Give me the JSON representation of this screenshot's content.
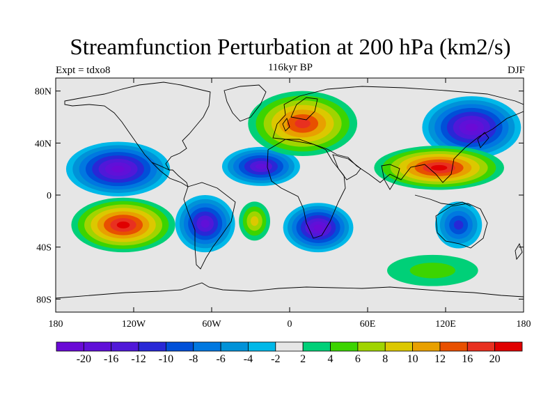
{
  "figure": {
    "title": "Streamfunction Perturbation at 200 hPa (km2/s)",
    "subtitle": "116kyr BP",
    "left_label": "Expt = tdxo8",
    "right_label": "DJF"
  },
  "map": {
    "projection": "cylindrical equidistant",
    "lon_range": [
      -180,
      180
    ],
    "lat_range": [
      -90,
      90
    ],
    "background_color": "#e6e6e6",
    "coastlines": true,
    "x_ticks": [
      {
        "lon": -180,
        "label": "180"
      },
      {
        "lon": -120,
        "label": "120W"
      },
      {
        "lon": -60,
        "label": "60W"
      },
      {
        "lon": 0,
        "label": "0"
      },
      {
        "lon": 60,
        "label": "60E"
      },
      {
        "lon": 120,
        "label": "120E"
      },
      {
        "lon": 180,
        "label": "180"
      }
    ],
    "y_ticks": [
      {
        "lat": 80,
        "label": "80N"
      },
      {
        "lat": 40,
        "label": "40N"
      },
      {
        "lat": 0,
        "label": "0"
      },
      {
        "lat": -40,
        "label": "40S"
      },
      {
        "lat": -80,
        "label": "80S"
      }
    ],
    "features": [
      {
        "name": "eastern-north-pacific-low",
        "sign": "negative",
        "lon": -132,
        "lat": 20,
        "rx": 40,
        "ry": 21,
        "peak": -20
      },
      {
        "name": "tropical-atlantic-low",
        "sign": "negative",
        "lon": -22,
        "lat": 22,
        "rx": 30,
        "ry": 15,
        "peak": -18
      },
      {
        "name": "south-america-low",
        "sign": "negative",
        "lon": -65,
        "lat": -22,
        "rx": 23,
        "ry": 22,
        "peak": -18
      },
      {
        "name": "southern-africa-low",
        "sign": "negative",
        "lon": 22,
        "lat": -25,
        "rx": 27,
        "ry": 19,
        "peak": -20
      },
      {
        "name": "northeast-asia-low",
        "sign": "negative",
        "lon": 140,
        "lat": 52,
        "rx": 38,
        "ry": 24,
        "peak": -20
      },
      {
        "name": "australia-low",
        "sign": "negative",
        "lon": 130,
        "lat": -23,
        "rx": 18,
        "ry": 18,
        "peak": -10
      },
      {
        "name": "south-pacific-high",
        "sign": "positive",
        "lon": -128,
        "lat": -23,
        "rx": 40,
        "ry": 21,
        "peak": 20
      },
      {
        "name": "europe-high",
        "sign": "positive",
        "lon": 10,
        "lat": 55,
        "rx": 42,
        "ry": 25,
        "peak": 16
      },
      {
        "name": "south-asia-high",
        "sign": "positive",
        "lon": 115,
        "lat": 21,
        "rx": 50,
        "ry": 17,
        "peak": 20
      },
      {
        "name": "south-atlantic-high",
        "sign": "positive",
        "lon": -27,
        "lat": -20,
        "rx": 12,
        "ry": 15,
        "peak": 8
      },
      {
        "name": "southern-ocean-high",
        "sign": "positive",
        "lon": 110,
        "lat": -58,
        "rx": 35,
        "ry": 12,
        "peak": 4
      }
    ]
  },
  "colorbar": {
    "labels": [
      "-20",
      "-16",
      "-12",
      "-10",
      "-8",
      "-6",
      "-4",
      "-2",
      "2",
      "4",
      "6",
      "8",
      "10",
      "12",
      "16",
      "20"
    ],
    "levels": [
      -20,
      -16,
      -12,
      -10,
      -8,
      -6,
      -4,
      -2,
      2,
      4,
      6,
      8,
      10,
      12,
      16,
      20
    ],
    "colors": [
      "#6a0ad6",
      "#6010d8",
      "#5018d8",
      "#2828d6",
      "#0050d8",
      "#0078e0",
      "#0092d8",
      "#00b8e8",
      "#e6e6e6",
      "#00d078",
      "#3cd400",
      "#a0d400",
      "#dcc800",
      "#e8a000",
      "#e85000",
      "#e83020",
      "#e00000"
    ]
  }
}
